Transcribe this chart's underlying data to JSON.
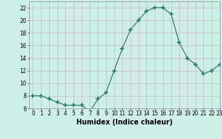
{
  "x": [
    0,
    1,
    2,
    3,
    4,
    5,
    6,
    7,
    8,
    9,
    10,
    11,
    12,
    13,
    14,
    15,
    16,
    17,
    18,
    19,
    20,
    21,
    22,
    23
  ],
  "y": [
    8.0,
    8.0,
    7.5,
    7.0,
    6.5,
    6.5,
    6.5,
    5.5,
    7.5,
    8.5,
    12.0,
    15.5,
    18.5,
    20.0,
    21.5,
    22.0,
    22.0,
    21.0,
    16.5,
    14.0,
    13.0,
    11.5,
    12.0,
    13.0
  ],
  "xlabel": "Humidex (Indice chaleur)",
  "ylim": [
    6,
    23
  ],
  "xlim": [
    -0.5,
    23
  ],
  "yticks": [
    6,
    8,
    10,
    12,
    14,
    16,
    18,
    20,
    22
  ],
  "xticks": [
    0,
    1,
    2,
    3,
    4,
    5,
    6,
    7,
    8,
    9,
    10,
    11,
    12,
    13,
    14,
    15,
    16,
    17,
    18,
    19,
    20,
    21,
    22,
    23
  ],
  "line_color": "#2d7a6e",
  "marker": "+",
  "marker_size": 4.0,
  "bg_color": "#ceeee8",
  "grid_color": "#c8b8b8",
  "tick_fontsize": 5.5,
  "xlabel_fontsize": 7,
  "xlabel_fontweight": "bold"
}
